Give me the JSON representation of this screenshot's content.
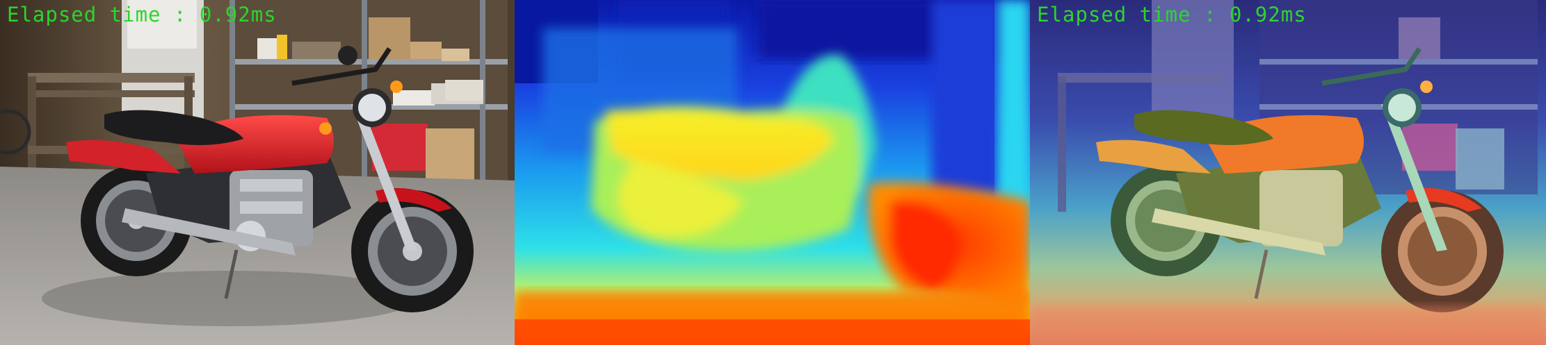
{
  "panels": {
    "original": {
      "overlay_text": "Elapsed time : 0.92ms"
    },
    "depth_map": {},
    "blended": {
      "overlay_text": "Elapsed time : 0.92ms"
    }
  },
  "colors": {
    "overlay_text": "#2bd62b",
    "motorcycle_red": "#d3222a",
    "depth_far": "#0a1aa8",
    "depth_near": "#ff4a00"
  }
}
